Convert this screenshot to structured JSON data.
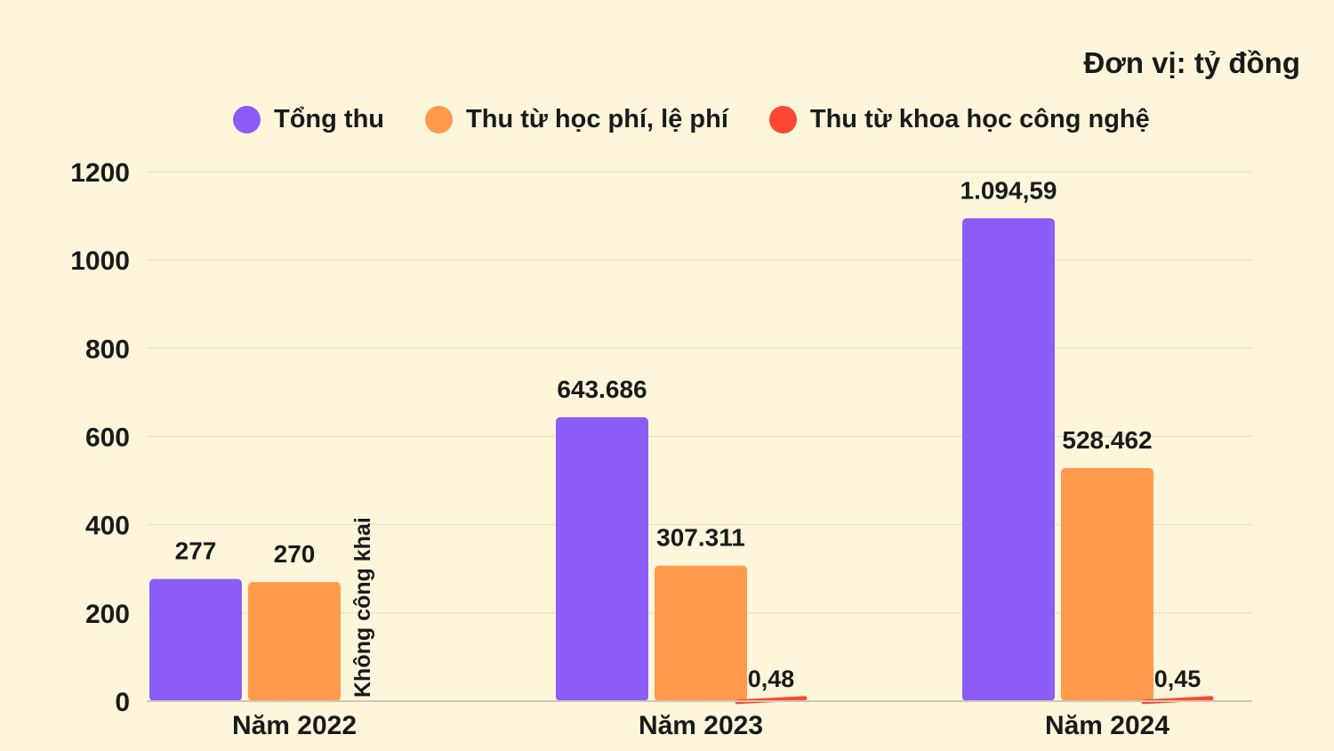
{
  "unit_label": "Đơn vị: tỷ đồng",
  "legend": [
    {
      "label": "Tổng thu",
      "color": "#8B5CF6"
    },
    {
      "label": "Thu từ học phí, lệ phí",
      "color": "#FF9A4D"
    },
    {
      "label": "Thu từ khoa học công nghệ",
      "color": "#FF4733"
    }
  ],
  "chart_data": {
    "type": "bar",
    "categories": [
      "Năm 2022",
      "Năm 2023",
      "Năm 2024"
    ],
    "ylim": [
      0,
      1200
    ],
    "yticks": [
      0,
      200,
      400,
      600,
      800,
      1000,
      1200
    ],
    "grid": true,
    "legend_position": "top",
    "series": [
      {
        "name": "Tổng thu",
        "color": "#8B5CF6",
        "values": [
          277,
          643.686,
          1094.59
        ],
        "labels": [
          "277",
          "643.686",
          "1.094,59"
        ]
      },
      {
        "name": "Thu từ học phí, lệ phí",
        "color": "#FF9A4D",
        "values": [
          270,
          307.311,
          528.462
        ],
        "labels": [
          "270",
          "307.311",
          "528.462"
        ]
      },
      {
        "name": "Thu từ khoa học công nghệ",
        "color": "#FF4733",
        "values": [
          null,
          0.48,
          0.45
        ],
        "labels": [
          "Không công khai",
          "0,48",
          "0,45"
        ]
      }
    ]
  }
}
